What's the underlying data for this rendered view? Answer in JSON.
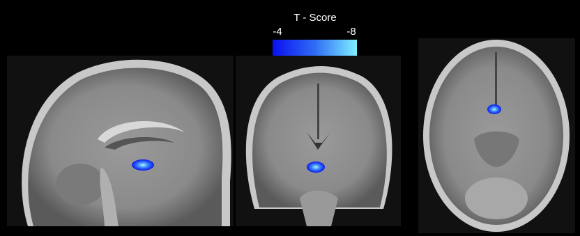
{
  "colorbar": {
    "title": "T - Score",
    "min": -4,
    "max": -8,
    "colors": [
      "#0a10f0",
      "#2f6cf5",
      "#7ff0ff"
    ]
  }
}
